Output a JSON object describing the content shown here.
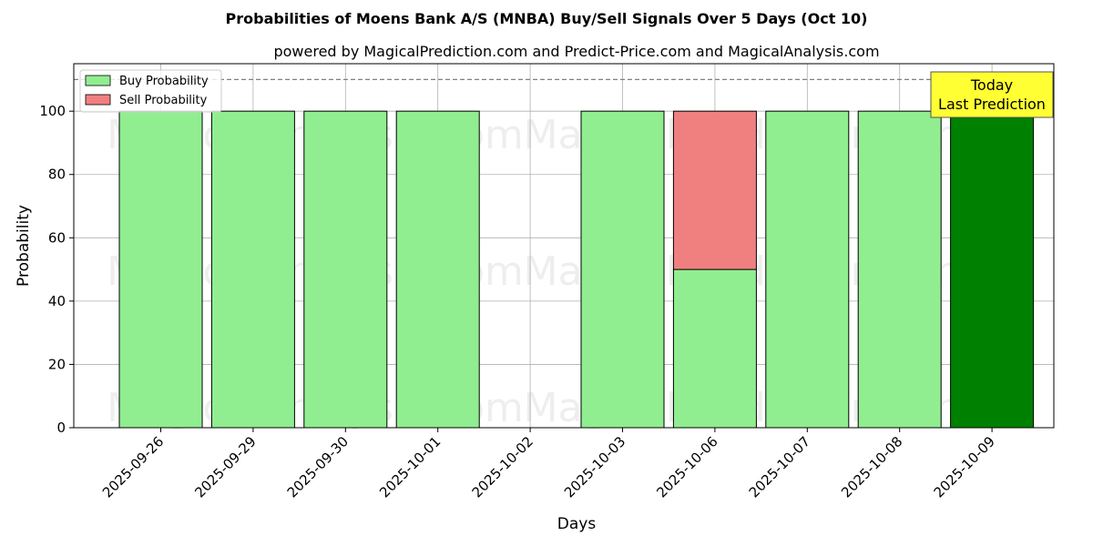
{
  "chart_data": {
    "type": "bar",
    "title": "Probabilities of Moens Bank A/S (MNBA) Buy/Sell Signals Over 5 Days (Oct 10)",
    "subtitle": "powered by MagicalPrediction.com and Predict-Price.com and MagicalAnalysis.com",
    "xlabel": "Days",
    "ylabel": "Probability",
    "ylim": [
      0,
      115
    ],
    "yticks": [
      0,
      20,
      40,
      60,
      80,
      100
    ],
    "reference_line": 110,
    "grid": true,
    "legend_position": "top-left",
    "categories": [
      "2025-09-26",
      "2025-09-29",
      "2025-09-30",
      "2025-10-01",
      "2025-10-02",
      "2025-10-03",
      "2025-10-06",
      "2025-10-07",
      "2025-10-08",
      "2025-10-09"
    ],
    "series": [
      {
        "name": "Buy Probability",
        "color": "#90ee90",
        "values": [
          100,
          100,
          100,
          100,
          0,
          100,
          50,
          100,
          100,
          100
        ]
      },
      {
        "name": "Sell Probability",
        "color": "#f08080",
        "values": [
          0,
          0,
          0,
          0,
          0,
          0,
          50,
          0,
          0,
          0
        ]
      }
    ],
    "highlight": {
      "category": "2025-10-09",
      "color": "#008000"
    },
    "annotation": {
      "lines": [
        "Today",
        "Last Prediction"
      ],
      "box_color": "#ffff33"
    },
    "watermarks": [
      "MagicalAnalysis.com",
      "MagicalPrediction.com"
    ]
  }
}
